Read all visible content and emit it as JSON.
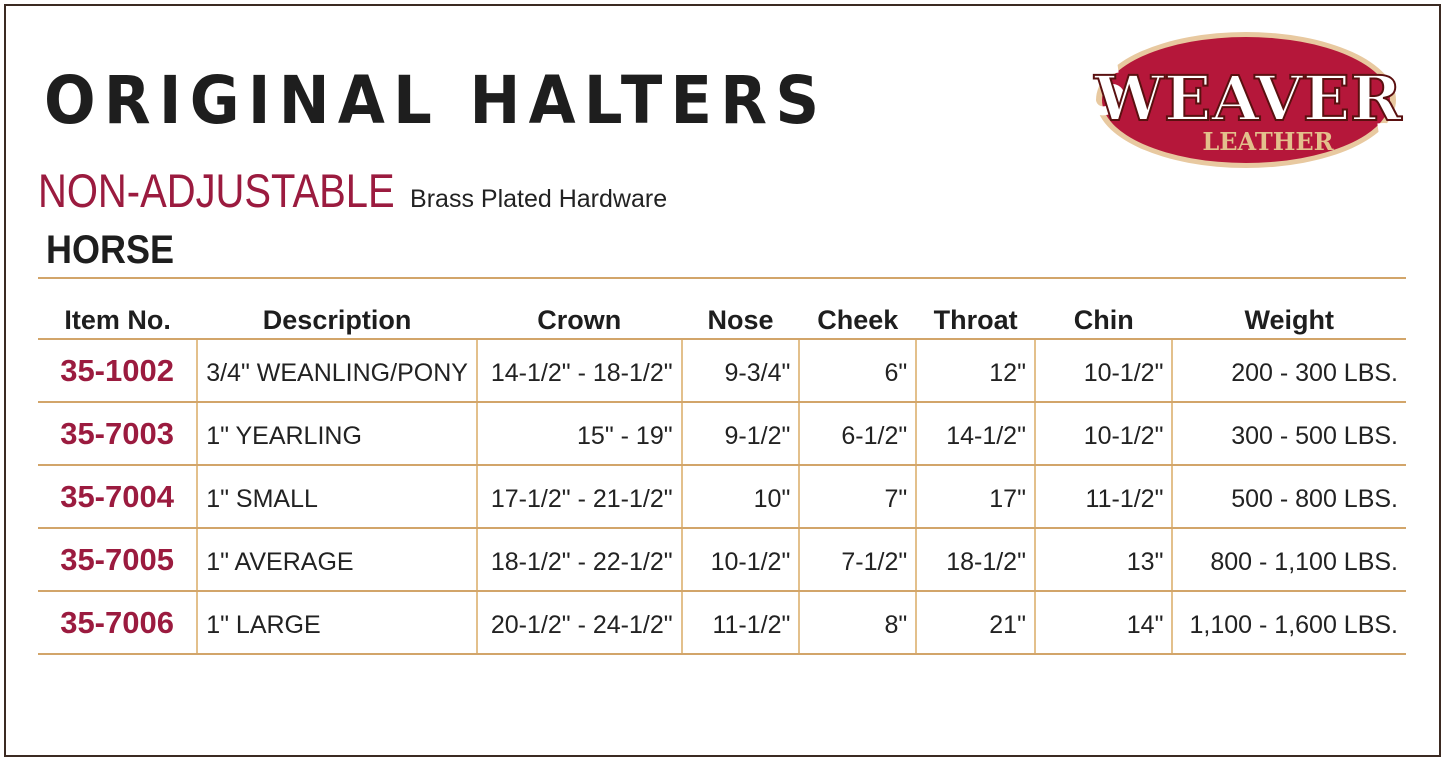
{
  "title": "ORIGINAL HALTERS",
  "subtitle": "NON-ADJUSTABLE",
  "hardware": "Brass Plated Hardware",
  "category": "HORSE",
  "logo": {
    "text": "WEAVER",
    "subtext": "LEATHER",
    "color": "#b5173a"
  },
  "colors": {
    "accent": "#9b1b3f",
    "rule": "#d2a56a",
    "frame": "#3b2a22"
  },
  "table": {
    "headers": [
      "Item No.",
      "Description",
      "Crown",
      "Nose",
      "Cheek",
      "Throat",
      "Chin",
      "Weight"
    ],
    "rows": [
      [
        "35-1002",
        "3/4\" WEANLING/PONY",
        "14-1/2\" - 18-1/2\"",
        "9-3/4\"",
        "6\"",
        "12\"",
        "10-1/2\"",
        "200 - 300 LBS."
      ],
      [
        "35-7003",
        "1\" YEARLING",
        "15\" - 19\"",
        "9-1/2\"",
        "6-1/2\"",
        "14-1/2\"",
        "10-1/2\"",
        "300 - 500 LBS."
      ],
      [
        "35-7004",
        "1\" SMALL",
        "17-1/2\" - 21-1/2\"",
        "10\"",
        "7\"",
        "17\"",
        "11-1/2\"",
        "500 - 800 LBS."
      ],
      [
        "35-7005",
        "1\" AVERAGE",
        "18-1/2\" - 22-1/2\"",
        "10-1/2\"",
        "7-1/2\"",
        "18-1/2\"",
        "13\"",
        "800 - 1,100 LBS."
      ],
      [
        "35-7006",
        "1\" LARGE",
        "20-1/2\" - 24-1/2\"",
        "11-1/2\"",
        "8\"",
        "21\"",
        "14\"",
        "1,100 - 1,600 LBS."
      ]
    ]
  }
}
